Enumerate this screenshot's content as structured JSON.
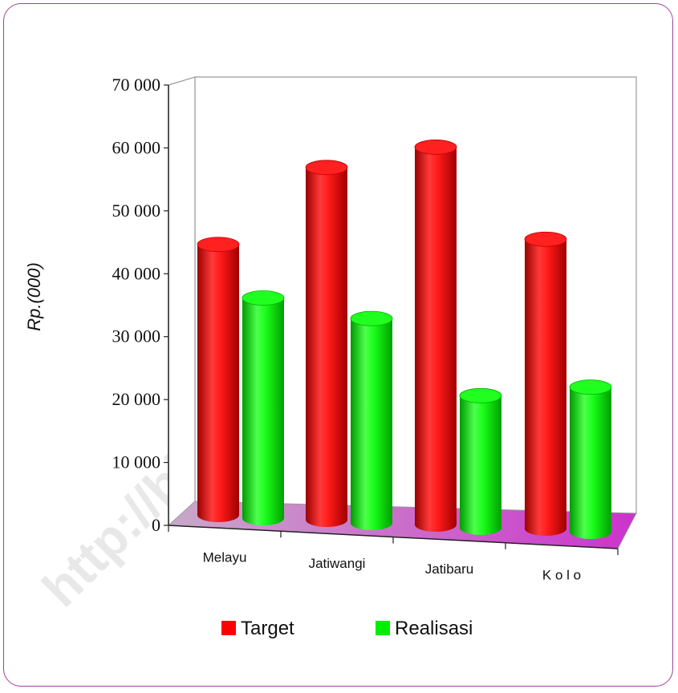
{
  "watermark": "http://binmakota.bps.go.id",
  "chart_data": {
    "type": "bar",
    "ylabel": "Rp.(000)",
    "xlabel": "",
    "ylim": [
      0,
      70000
    ],
    "yticks": [
      0,
      10000,
      20000,
      30000,
      40000,
      50000,
      60000,
      70000
    ],
    "ytick_labels": [
      "0",
      "10 000",
      "20 000",
      "30 000",
      "40 000",
      "50 000",
      "60 000",
      "70 000"
    ],
    "categories": [
      "Melayu",
      "Jatiwangi",
      "Jatibaru",
      "K o l o"
    ],
    "series": [
      {
        "name": "Target",
        "color": "#ff0000",
        "values": [
          43000,
          56000,
          60000,
          46000
        ]
      },
      {
        "name": "Realisasi",
        "color": "#00ee00",
        "values": [
          35000,
          32500,
          21000,
          23000
        ]
      }
    ],
    "legend_position": "bottom",
    "grid": false,
    "style": "3d-cylinder"
  }
}
